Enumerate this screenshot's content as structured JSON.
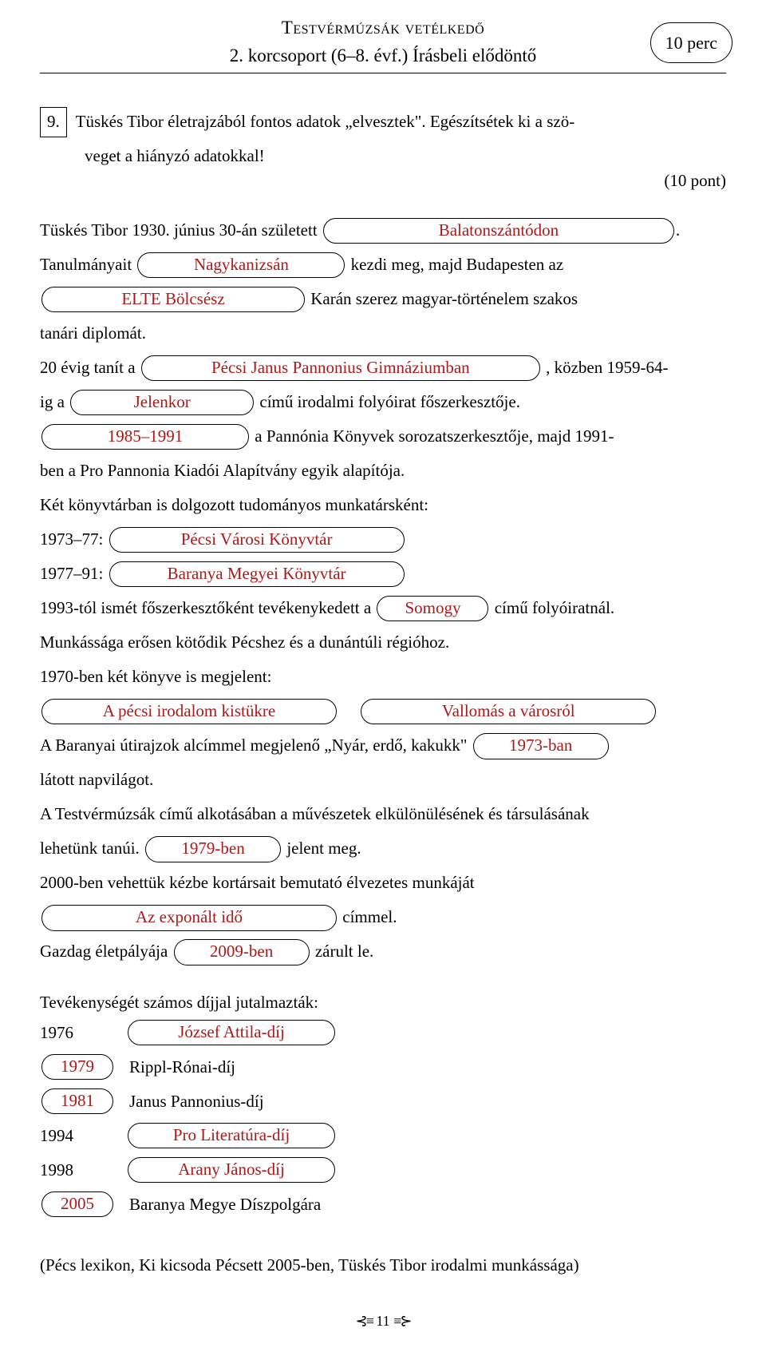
{
  "header": {
    "title": "Testvérmúzsák vetélkedő",
    "subtitle": "2. korcsoport (6–8. évf.) Írásbeli elődöntő",
    "time": "10 perc"
  },
  "question": {
    "number": "9.",
    "prompt_line1": "Tüskés Tibor életrajzából fontos adatok „elvesztek\". Egészítsétek ki a szö-",
    "prompt_line2": "veget a hiányzó adatokkal!",
    "points": "(10 pont)"
  },
  "body": {
    "t1a": "Tüskés Tibor 1930. június 30-án született ",
    "ans_birthplace": "Balatonszántódon",
    "t1b": ".",
    "t2a": "Tanulmányait ",
    "ans_study_city": "Nagykanizsán",
    "t2b": " kezdi meg, majd Budapesten az",
    "ans_faculty": "ELTE Bölcsész",
    "t3b": " Karán szerez magyar-történelem szakos",
    "t3c": "tanári diplomát.",
    "t4a": "20 évig tanít a ",
    "ans_school": "Pécsi Janus Pannonius Gimnáziumban",
    "t4b": " , közben 1959-64-",
    "t5a": "ig a ",
    "ans_journal": "Jelenkor",
    "t5b": " című irodalmi folyóirat főszerkesztője.",
    "ans_years_series": "1985–1991",
    "t6b": " a Pannónia Könyvek sorozatszerkesztője, majd 1991-",
    "t6c": "ben a Pro Pannonia Kiadói Alapítvány egyik alapítója.",
    "t7": "Két könyvtárban is dolgozott tudományos munkatársként:",
    "t8a": "1973–77: ",
    "ans_lib1": "Pécsi Városi Könyvtár",
    "t9a": "1977–91: ",
    "ans_lib2": "Baranya Megyei Könyvtár",
    "t10a": "1993-tól ismét főszerkesztőként tevékenykedett a ",
    "ans_journal2": "Somogy",
    "t10b": " című folyóiratnál.",
    "t11": "Munkássága erősen kötődik Pécshez és a dunántúli régióhoz.",
    "t12": "1970-ben két könyve is megjelent:",
    "ans_book1": "A pécsi irodalom kistükre",
    "ans_book2": "Vallomás a városról",
    "t13a": "A Baranyai útirajzok alcímmel megjelenő „Nyár, erdő, kakukk\" ",
    "ans_year_nyar": "1973-ban",
    "t13c": "látott napvilágot.",
    "t14a": "A Testvérmúzsák című alkotásában a művészetek elkülönülésének és társulásának",
    "t14b": "lehetünk tanúi. ",
    "ans_year_testver": "1979-ben",
    "t14c": " jelent meg.",
    "t15": "2000-ben vehettük kézbe kortársait bemutató élvezetes munkáját",
    "ans_book3": "Az exponált idő",
    "t15b": " címmel.",
    "t16a": "Gazdag életpályája ",
    "ans_death": "2009-ben",
    "t16b": " zárult le."
  },
  "awards": {
    "heading": "Tevékenységét számos díjjal jutalmazták:",
    "rows": [
      {
        "year": "1976",
        "year_is_pill": false,
        "award": "József Attila-díj",
        "award_is_pill": true
      },
      {
        "year": "1979",
        "year_is_pill": true,
        "award": "Rippl-Rónai-díj",
        "award_is_pill": false
      },
      {
        "year": "1981",
        "year_is_pill": true,
        "award": "Janus Pannonius-díj",
        "award_is_pill": false
      },
      {
        "year": "1994",
        "year_is_pill": false,
        "award": "Pro Literatúra-díj",
        "award_is_pill": true
      },
      {
        "year": "1998",
        "year_is_pill": false,
        "award": "Arany János-díj",
        "award_is_pill": true
      },
      {
        "year": "2005",
        "year_is_pill": true,
        "award": "Baranya Megye Díszpolgára",
        "award_is_pill": false
      }
    ]
  },
  "footnote": "(Pécs lexikon, Ki kicsoda Pécsett 2005-ben, Tüskés Tibor irodalmi munkássága)",
  "page_number": "11",
  "colors": {
    "answer": "#b01818",
    "text": "#000000",
    "background": "#ffffff"
  }
}
